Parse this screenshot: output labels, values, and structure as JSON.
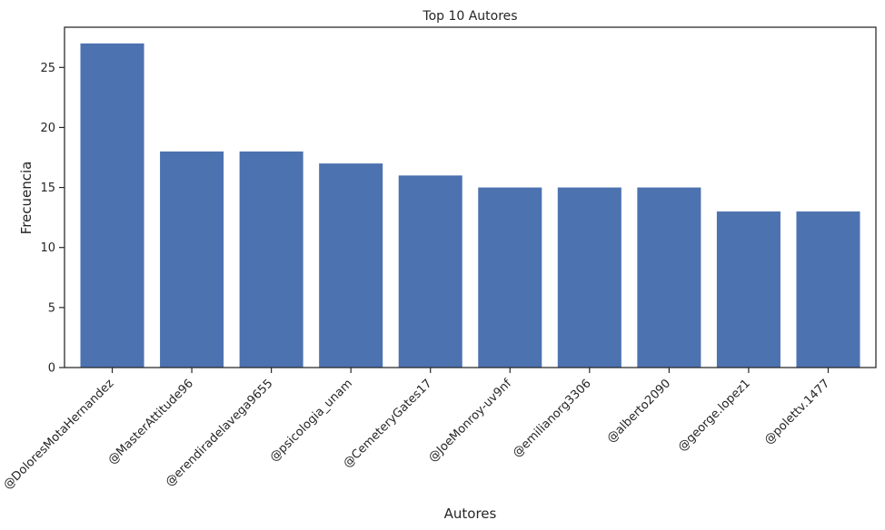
{
  "chart_data": {
    "type": "bar",
    "title": "Top 10 Autores",
    "xlabel": "Autores",
    "ylabel": "Frecuencia",
    "categories": [
      "@DoloresMotaHernandez",
      "@MasterAttitude96",
      "@erendiradelavega9655",
      "@psicologia_unam",
      "@CemeteryGates17",
      "@JoeMonroy-uv9nf",
      "@emilianorg3306",
      "@alberto2090",
      "@george.lopez1",
      "@polettv.1477"
    ],
    "values": [
      27,
      18,
      18,
      17,
      16,
      15,
      15,
      15,
      13,
      13
    ],
    "ylim": [
      0,
      28.35
    ],
    "yticks": [
      0,
      5,
      10,
      15,
      20,
      25
    ],
    "grid": false,
    "bar_color": "#4c72b0"
  }
}
